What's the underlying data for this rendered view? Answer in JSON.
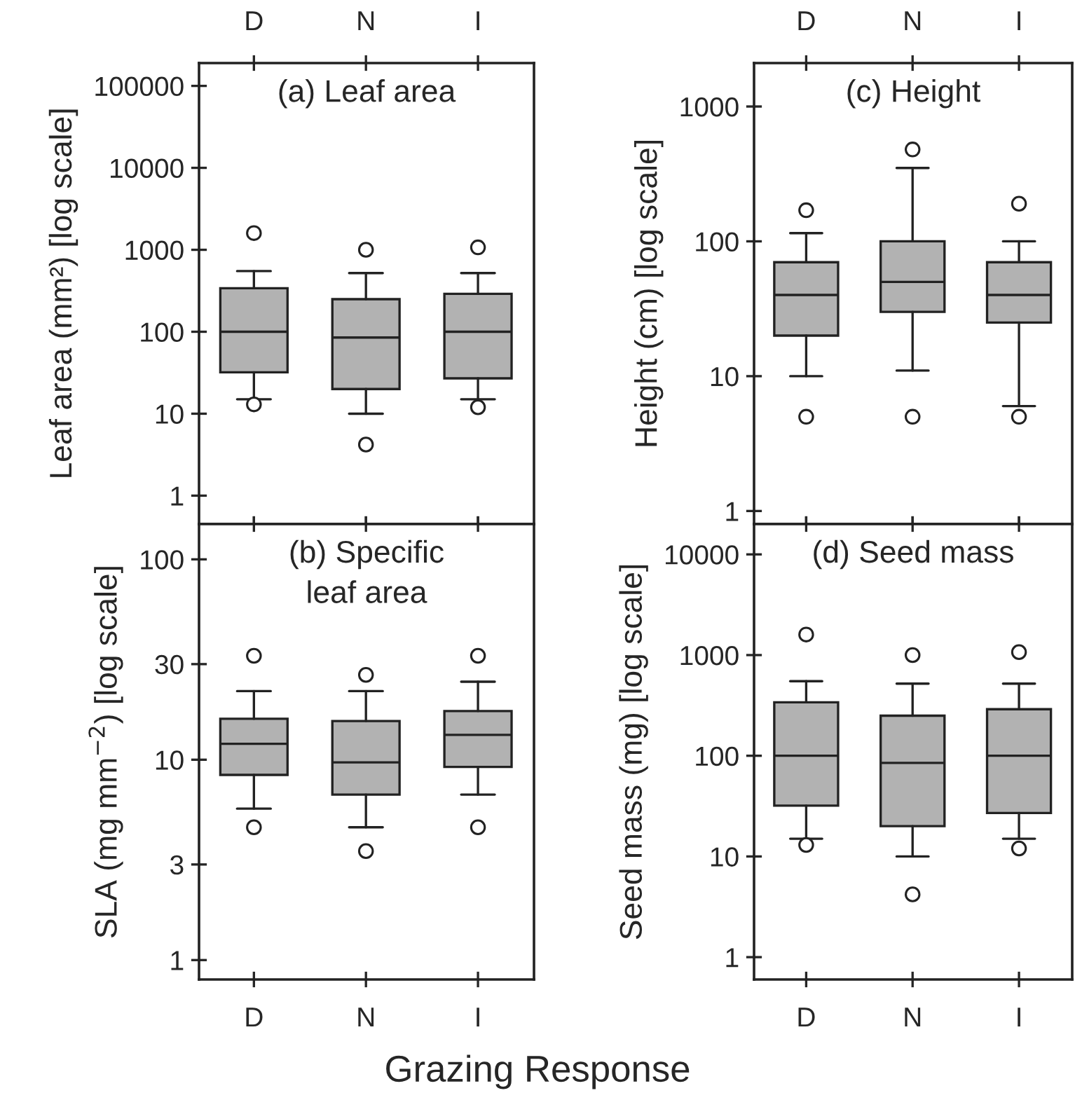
{
  "chart_data": [
    {
      "type": "box",
      "title": "(a) Leaf area",
      "ylabel": "Leaf area (mm²) [log scale]",
      "categories": [
        "D",
        "N",
        "I"
      ],
      "log": true,
      "ylim": [
        0.45,
        190000
      ],
      "yticks": [
        1,
        10,
        100,
        1000,
        10000,
        100000
      ],
      "boxes": [
        {
          "low": 15,
          "q1": 32,
          "median": 100,
          "q3": 340,
          "high": 550,
          "outliers": [
            1600,
            13
          ]
        },
        {
          "low": 10,
          "q1": 20,
          "median": 85,
          "q3": 250,
          "high": 520,
          "outliers": [
            1000,
            4.2
          ]
        },
        {
          "low": 15,
          "q1": 27,
          "median": 100,
          "q3": 290,
          "high": 520,
          "outliers": [
            1070,
            12
          ]
        }
      ]
    },
    {
      "type": "box",
      "title": "(c) Height",
      "ylabel": "Height (cm) [log scale]",
      "categories": [
        "D",
        "N",
        "I"
      ],
      "log": true,
      "ylim": [
        0.8,
        2100
      ],
      "yticks": [
        1,
        10,
        100,
        1000
      ],
      "boxes": [
        {
          "low": 10,
          "q1": 20,
          "median": 40,
          "q3": 70,
          "high": 115,
          "outliers": [
            170,
            5
          ]
        },
        {
          "low": 11,
          "q1": 30,
          "median": 50,
          "q3": 100,
          "high": 350,
          "outliers": [
            480,
            5
          ]
        },
        {
          "low": 6,
          "q1": 25,
          "median": 40,
          "q3": 70,
          "high": 100,
          "outliers": [
            190,
            5
          ]
        }
      ]
    },
    {
      "type": "box",
      "title": "(b) Specific\nleaf area",
      "ylabel": "SLA (mg mm$^{−2}$) [log scale]",
      "categories": [
        "D",
        "N",
        "I"
      ],
      "log": true,
      "ylim": [
        0.8,
        150
      ],
      "yticks": [
        1,
        3,
        10,
        30,
        100
      ],
      "boxes": [
        {
          "low": 5.7,
          "q1": 8.4,
          "median": 12,
          "q3": 16,
          "high": 22,
          "outliers": [
            33,
            4.6
          ]
        },
        {
          "low": 4.6,
          "q1": 6.7,
          "median": 9.7,
          "q3": 15.6,
          "high": 22,
          "outliers": [
            26.5,
            3.5
          ]
        },
        {
          "low": 6.7,
          "q1": 9.2,
          "median": 13.3,
          "q3": 17.5,
          "high": 24.5,
          "outliers": [
            33,
            4.6
          ]
        }
      ]
    },
    {
      "type": "box",
      "title": "(d) Seed mass",
      "ylabel": "Seed mass (mg) [log scale]",
      "categories": [
        "D",
        "N",
        "I"
      ],
      "log": true,
      "ylim": [
        0.6,
        20000
      ],
      "yticks": [
        1,
        10,
        100,
        1000,
        10000
      ],
      "annotations": [
        "Grazing Response"
      ],
      "boxes": [
        {
          "low": 15,
          "q1": 32,
          "median": 100,
          "q3": 340,
          "high": 550,
          "outliers": [
            1600,
            13
          ]
        },
        {
          "low": 10,
          "q1": 20,
          "median": 85,
          "q3": 250,
          "high": 520,
          "outliers": [
            1000,
            4.2
          ]
        },
        {
          "low": 15,
          "q1": 27,
          "median": 100,
          "q3": 290,
          "high": 520,
          "outliers": [
            1070,
            12
          ]
        }
      ]
    }
  ]
}
